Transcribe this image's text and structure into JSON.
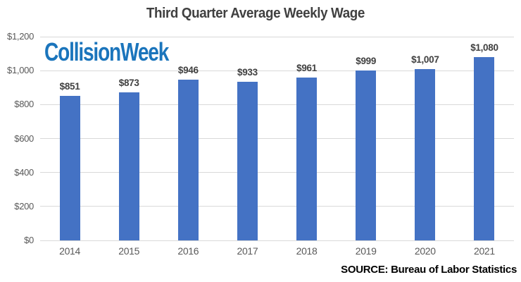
{
  "chart_data": {
    "type": "bar",
    "title": "Third Quarter Average Weekly Wage",
    "categories": [
      "2014",
      "2015",
      "2016",
      "2017",
      "2018",
      "2019",
      "2020",
      "2021"
    ],
    "values": [
      851,
      873,
      946,
      933,
      961,
      999,
      1007,
      1080
    ],
    "bar_labels": [
      "$851",
      "$873",
      "$946",
      "$933",
      "$961",
      "$999",
      "$1,007",
      "$1,080"
    ],
    "xlabel": "",
    "ylabel": "",
    "ylim": [
      0,
      1200
    ],
    "ytick_values": [
      0,
      200,
      400,
      600,
      800,
      1000,
      1200
    ],
    "ytick_labels": [
      "$0",
      "$200",
      "$400",
      "$600",
      "$800",
      "$1,000",
      "$1,200"
    ],
    "grid": true,
    "legend": "none",
    "bar_color": "#4472C4",
    "gridline_color": "#D9D9D9",
    "axis_label_color": "#595959",
    "data_label_color": "#404040",
    "title_color": "#404040"
  },
  "logo": {
    "text": "CollisionWeek",
    "color": "#1B75BC"
  },
  "source": "SOURCE: Bureau of Labor Statistics"
}
